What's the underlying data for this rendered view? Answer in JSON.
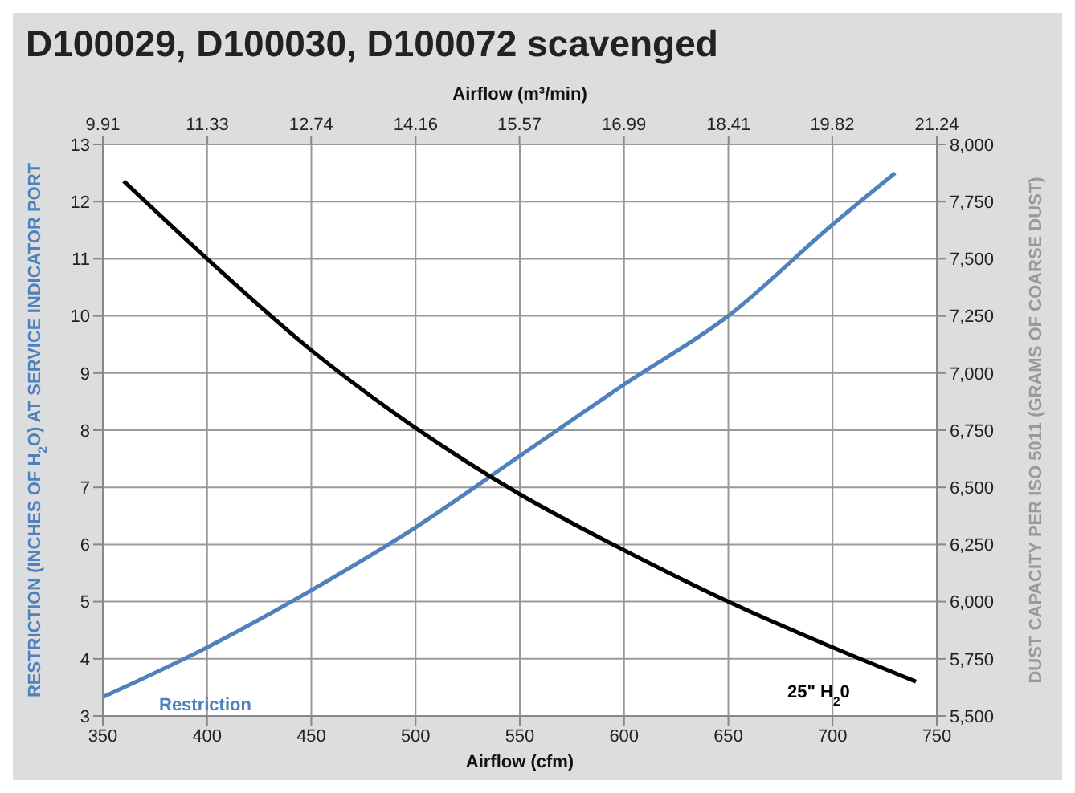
{
  "chart_data": {
    "type": "line",
    "title": "D100029, D100030, D100072 scavenged",
    "xlabel": "Airflow (cfm)",
    "x2label": "Airflow (m³/min)",
    "ylabel": "RESTRICTION (INCHES OF H$_{2}$O) AT SERVICE INDICATOR PORT",
    "y2label": "DUST CAPACITY PER ISO 5011 (GRAMS OF COARSE DUST)",
    "xlim": [
      350,
      750
    ],
    "xticks": [
      350,
      400,
      450,
      500,
      550,
      600,
      650,
      700,
      750
    ],
    "x2lim": [
      9.91,
      21.24
    ],
    "x2ticks": [
      9.91,
      11.33,
      12.74,
      14.16,
      15.57,
      16.99,
      18.41,
      19.82,
      21.24
    ],
    "ylim": [
      3,
      13
    ],
    "yticks": [
      3,
      4,
      5,
      6,
      7,
      8,
      9,
      10,
      11,
      12,
      13
    ],
    "y2lim": [
      5500,
      8000
    ],
    "y2ticks": [
      {
        "value": 5500,
        "label": "5,500"
      },
      {
        "value": 5750,
        "label": "5,750"
      },
      {
        "value": 6000,
        "label": "6,000"
      },
      {
        "value": 6250,
        "label": "6,250"
      },
      {
        "value": 6500,
        "label": "6,500"
      },
      {
        "value": 6750,
        "label": "6,750"
      },
      {
        "value": 7000,
        "label": "7,000"
      },
      {
        "value": 7250,
        "label": "7,250"
      },
      {
        "value": 7500,
        "label": "7,500"
      },
      {
        "value": 7750,
        "label": "7,750"
      },
      {
        "value": 8000,
        "label": "8,000"
      }
    ],
    "grid": true,
    "legend": false,
    "marker": "none",
    "line_style": "solid",
    "series": [
      {
        "name": "Restriction",
        "color": "#4f81bd",
        "x": [
          350,
          400,
          450,
          500,
          550,
          600,
          650,
          700,
          730
        ],
        "values": [
          3.33,
          4.2,
          5.2,
          6.3,
          7.55,
          8.8,
          10.0,
          11.6,
          12.5
        ]
      },
      {
        "name": "25\" H$_{2}$0",
        "color": "#000000",
        "axis": "y2",
        "x": [
          360,
          400,
          450,
          500,
          550,
          600,
          650,
          700,
          740
        ],
        "values": [
          7840,
          7500,
          7100,
          6760,
          6470,
          6225,
          6000,
          5800,
          5650
        ]
      }
    ]
  }
}
